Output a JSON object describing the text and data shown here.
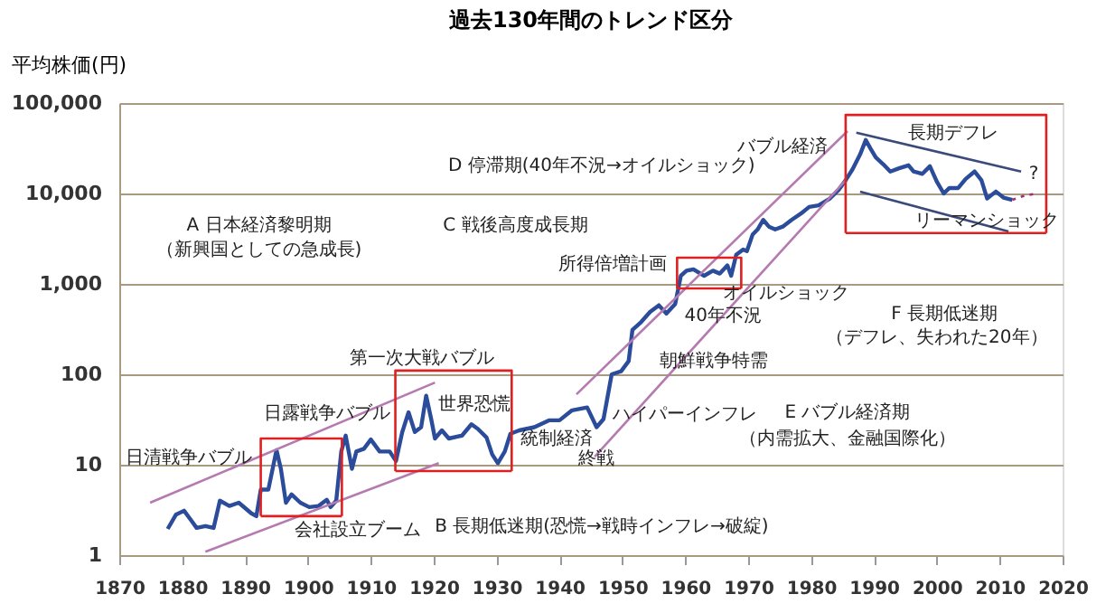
{
  "chart_data": {
    "type": "line",
    "title": "過去130年間のトレンド区分",
    "ylabel": "平均株価(円)",
    "xlim": [
      1870,
      2020
    ],
    "xticks": [
      1870,
      1880,
      1890,
      1900,
      1910,
      1920,
      1930,
      1940,
      1950,
      1960,
      1970,
      1980,
      1990,
      2000,
      2010,
      2020
    ],
    "ylim": [
      1,
      100000
    ],
    "yticks": [
      {
        "value": 1,
        "label": "1"
      },
      {
        "value": 10,
        "label": "10"
      },
      {
        "value": 100,
        "label": "100"
      },
      {
        "value": 1000,
        "label": "1,000"
      },
      {
        "value": 10000,
        "label": "10,000"
      },
      {
        "value": 100000,
        "label": "100,000"
      }
    ],
    "log": "y",
    "grid": "y",
    "marker": "none",
    "series": [
      {
        "color": "#2b4c9b",
        "line_style": "solid",
        "x": [
          1877.7,
          1879,
          1880.3,
          1881.3,
          1882.3,
          1883.7,
          1885,
          1886,
          1887.5,
          1889,
          1891,
          1891.8,
          1892.5,
          1893.7,
          1895,
          1895.7,
          1896.5,
          1897.4,
          1898.8,
          1900.2,
          1901.7,
          1903,
          1903.6,
          1904.5,
          1905.3,
          1906,
          1907,
          1907.7,
          1908.9,
          1910,
          1911.4,
          1913,
          1914,
          1915,
          1916,
          1917,
          1918,
          1918.8,
          1919.6,
          1920.2,
          1921.3,
          1922.4,
          1924.5,
          1926,
          1927,
          1928.4,
          1929.3,
          1930.2,
          1931.3,
          1932.2,
          1933.6,
          1936,
          1938.4,
          1940,
          1942,
          1944.4,
          1945.9,
          1947,
          1948.3,
          1949.8,
          1951,
          1951.6,
          1953,
          1954.4,
          1955.8,
          1957,
          1958.4,
          1959.3,
          1960.2,
          1961.3,
          1963,
          1964.4,
          1965.5,
          1966.7,
          1967.3,
          1968.1,
          1969.2,
          1969.8,
          1970.7,
          1971.5,
          1972.4,
          1973.3,
          1974.3,
          1975.5,
          1976.9,
          1978.4,
          1979.7,
          1981.2,
          1983,
          1984.4,
          1985.5,
          1986.6,
          1987.8,
          1988.7,
          1989.5,
          1990.3,
          1991.5,
          1992.6,
          1994,
          1995.5,
          1996.3,
          1997.7,
          1998.9,
          2000,
          2001.1,
          2002,
          2003.4,
          2004.6,
          2006,
          2007.1,
          2008,
          2009.4,
          2010.6,
          2012
        ],
        "values": [
          1.95,
          2.8,
          3.1,
          2.5,
          2.0,
          2.1,
          2.0,
          4.0,
          3.5,
          3.8,
          2.9,
          2.7,
          5.3,
          5.3,
          14.5,
          9,
          3.8,
          4.7,
          3.8,
          3.4,
          3.5,
          4.1,
          3.4,
          4,
          14,
          21,
          9,
          14,
          15,
          19,
          14,
          14,
          11,
          23,
          38,
          23,
          26,
          58,
          32,
          19.5,
          24,
          19.5,
          21,
          28,
          25,
          20,
          13,
          10.4,
          14,
          22,
          24,
          26,
          31,
          31,
          40,
          43,
          26,
          32,
          100,
          108,
          140,
          310,
          380,
          490,
          580,
          470,
          600,
          1230,
          1400,
          1450,
          1230,
          1400,
          1300,
          1600,
          1230,
          2100,
          2400,
          2300,
          3500,
          4000,
          5100,
          4300,
          4000,
          4300,
          5100,
          6000,
          7100,
          7400,
          8800,
          11000,
          14000,
          18500,
          27000,
          39000,
          31000,
          25000,
          21000,
          17500,
          19000,
          20500,
          17500,
          16500,
          20000,
          13500,
          10000,
          11500,
          11500,
          14500,
          17500,
          14000,
          8800,
          10500,
          9000,
          8500
        ]
      },
      {
        "color": "#a0307a",
        "line_style": "dotted",
        "x": [
          2012,
          2014,
          2016
        ],
        "values": [
          8500,
          9500,
          10000
        ]
      },
      {
        "color": "#b57ab0",
        "line_style": "solid",
        "x": [
          1874.9,
          1920.2
        ],
        "values": [
          3.8,
          81
        ]
      },
      {
        "color": "#b57ab0",
        "line_style": "solid",
        "x": [
          1883.7,
          1920.8
        ],
        "values": [
          1.09,
          10.4
        ]
      },
      {
        "color": "#b57ab0",
        "line_style": "solid",
        "x": [
          1942.7,
          1985.8
        ],
        "values": [
          60,
          49000
        ]
      },
      {
        "color": "#b57ab0",
        "line_style": "solid",
        "x": [
          1945.6,
          1985.5
        ],
        "values": [
          12.3,
          14000
        ]
      },
      {
        "color": "#3a4a7a",
        "line_style": "solid",
        "x": [
          1987.2,
          2013.4
        ],
        "values": [
          47000,
          17500
        ]
      },
      {
        "color": "#3a4a7a",
        "line_style": "solid",
        "x": [
          1987.8,
          2011.4
        ],
        "values": [
          10500,
          3800
        ]
      },
      {
        "color": "#e02020",
        "line_style": "solid",
        "x": [
          1892.5,
          1892.5,
          1905.4,
          1905.4
        ],
        "values": [
          2.7,
          19.5,
          19.5,
          2.7
        ]
      },
      {
        "color": "#e02020",
        "line_style": "solid",
        "x": [
          1892.5,
          1905.4
        ],
        "values": [
          2.7,
          2.7
        ]
      },
      {
        "color": "#e02020",
        "line_style": "solid",
        "x": [
          1913.9,
          1913.9,
          1932.4,
          1932.4
        ],
        "values": [
          8.5,
          110,
          110,
          8.5
        ]
      },
      {
        "color": "#e02020",
        "line_style": "solid",
        "x": [
          1913.9,
          1932.4
        ],
        "values": [
          8.5,
          8.5
        ]
      },
      {
        "color": "#e02020",
        "line_style": "solid",
        "x": [
          1958.7,
          1958.7,
          1968.9,
          1968.9
        ],
        "values": [
          890,
          1950,
          1950,
          890
        ]
      },
      {
        "color": "#e02020",
        "line_style": "solid",
        "x": [
          1958.7,
          1968.9
        ],
        "values": [
          890,
          890
        ]
      },
      {
        "color": "#e02020",
        "line_style": "solid",
        "x": [
          1985.5,
          1985.5,
          2017.4,
          2017.4
        ],
        "values": [
          3650,
          74000,
          74000,
          3650
        ]
      },
      {
        "color": "#e02020",
        "line_style": "solid",
        "x": [
          1985.5,
          2017.4
        ],
        "values": [
          3650,
          3650
        ]
      }
    ],
    "annotations": [
      "A 日本経済黎明期",
      "（新興国としての急成長)",
      "D 停滞期(40年不況→オイルショック)",
      "C 戦後高度成長期",
      "バブル経済",
      "長期デフレ",
      "?",
      "リーマンショック",
      "所得倍増計画",
      "オイルショック",
      "40年不況",
      "F 長期低迷期",
      "（デフレ、失われた20年）",
      "朝鮮戦争特需",
      "ハイパーインフレ",
      "E バブル経済期",
      "（内需拡大、金融国際化）",
      "終戦",
      "統制経済",
      "B 長期低迷期(恐慌→戦時インフレ→破綻)",
      "世界恐慌",
      "第一次大戦バブル",
      "日露戦争バブル",
      "日清戦争バブル",
      "会社設立ブーム"
    ]
  }
}
